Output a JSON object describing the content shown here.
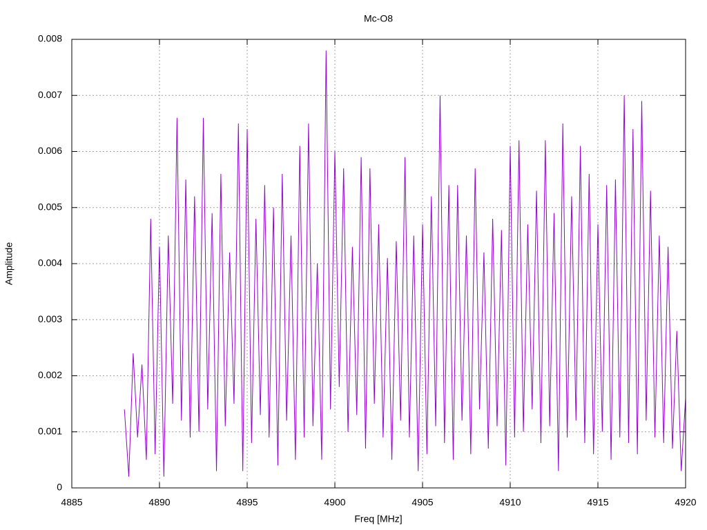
{
  "chart_data": {
    "type": "line",
    "title": "Mc-O8",
    "x_label": "Freq [MHz]",
    "y_label": "Amplitude",
    "x": [
      4888,
      4888.25,
      4888.5,
      4888.75,
      4889,
      4889.25,
      4889.5,
      4889.75,
      4890,
      4890.25,
      4890.5,
      4890.75,
      4891,
      4891.25,
      4891.5,
      4891.75,
      4892,
      4892.25,
      4892.5,
      4892.75,
      4893,
      4893.25,
      4893.5,
      4893.75,
      4894,
      4894.25,
      4894.5,
      4894.75,
      4895,
      4895.25,
      4895.5,
      4895.75,
      4896,
      4896.25,
      4896.5,
      4896.75,
      4897,
      4897.25,
      4897.5,
      4897.75,
      4898,
      4898.25,
      4898.5,
      4898.75,
      4899,
      4899.25,
      4899.5,
      4899.75,
      4900,
      4900.25,
      4900.5,
      4900.75,
      4901,
      4901.25,
      4901.5,
      4901.75,
      4902,
      4902.25,
      4902.5,
      4902.75,
      4903,
      4903.25,
      4903.5,
      4903.75,
      4904,
      4904.25,
      4904.5,
      4904.75,
      4905,
      4905.25,
      4905.5,
      4905.75,
      4906,
      4906.25,
      4906.5,
      4906.75,
      4907,
      4907.25,
      4907.5,
      4907.75,
      4908,
      4908.25,
      4908.5,
      4908.75,
      4909,
      4909.25,
      4909.5,
      4909.75,
      4910,
      4910.25,
      4910.5,
      4910.75,
      4911,
      4911.25,
      4911.5,
      4911.75,
      4912,
      4912.25,
      4912.5,
      4912.75,
      4913,
      4913.25,
      4913.5,
      4913.75,
      4914,
      4914.25,
      4914.5,
      4914.75,
      4915,
      4915.25,
      4915.5,
      4915.75,
      4916,
      4916.25,
      4916.5,
      4916.75,
      4917,
      4917.25,
      4917.5,
      4917.75,
      4918,
      4918.25,
      4918.5,
      4918.75,
      4919,
      4919.25,
      4919.5,
      4919.75,
      4920
    ],
    "series": [
      {
        "name": null,
        "color": "#9400d3",
        "values": [
          0.0014,
          0.0002,
          0.0024,
          0.0009,
          0.0022,
          0.0005,
          0.0048,
          0.0006,
          0.0043,
          0.0002,
          0.0045,
          0.0015,
          0.0066,
          0.0012,
          0.0055,
          0.0009,
          0.0052,
          0.001,
          0.0066,
          0.0014,
          0.0049,
          0.0003,
          0.0056,
          0.0011,
          0.0042,
          0.0015,
          0.0065,
          0.0003,
          0.0064,
          0.0008,
          0.0048,
          0.0013,
          0.0054,
          0.0009,
          0.005,
          0.0004,
          0.0056,
          0.0012,
          0.0045,
          0.0005,
          0.0061,
          0.0009,
          0.0065,
          0.0011,
          0.004,
          0.0005,
          0.0078,
          0.0014,
          0.006,
          0.0018,
          0.0057,
          0.001,
          0.0043,
          0.0013,
          0.0059,
          0.0007,
          0.0057,
          0.0015,
          0.0047,
          0.0009,
          0.0041,
          0.0005,
          0.0044,
          0.0012,
          0.0059,
          0.0009,
          0.0045,
          0.0003,
          0.0047,
          0.0006,
          0.0052,
          0.0011,
          0.007,
          0.0008,
          0.0054,
          0.0005,
          0.0054,
          0.0012,
          0.0045,
          0.0006,
          0.0057,
          0.0014,
          0.0042,
          0.0007,
          0.0048,
          0.0011,
          0.0046,
          0.0004,
          0.0061,
          0.0009,
          0.0062,
          0.001,
          0.0047,
          0.0014,
          0.0053,
          0.0008,
          0.0062,
          0.0011,
          0.0049,
          0.0003,
          0.0065,
          0.0009,
          0.0052,
          0.0012,
          0.0061,
          0.0008,
          0.0056,
          0.0006,
          0.0047,
          0.001,
          0.0054,
          0.0005,
          0.0055,
          0.0009,
          0.007,
          0.0008,
          0.0064,
          0.0006,
          0.0069,
          0.0012,
          0.0053,
          0.0009,
          0.0045,
          0.0008,
          0.0043,
          0.0007,
          0.0028,
          0.0003,
          0.0016
        ]
      }
    ],
    "xlim": [
      4885,
      4920
    ],
    "xticks": [
      4885,
      4890,
      4895,
      4900,
      4905,
      4910,
      4915,
      4920
    ],
    "ylim": [
      0,
      0.008
    ],
    "yticks": [
      0,
      0.001,
      0.002,
      0.003,
      0.004,
      0.005,
      0.006,
      0.007,
      0.008
    ],
    "grid": true
  }
}
